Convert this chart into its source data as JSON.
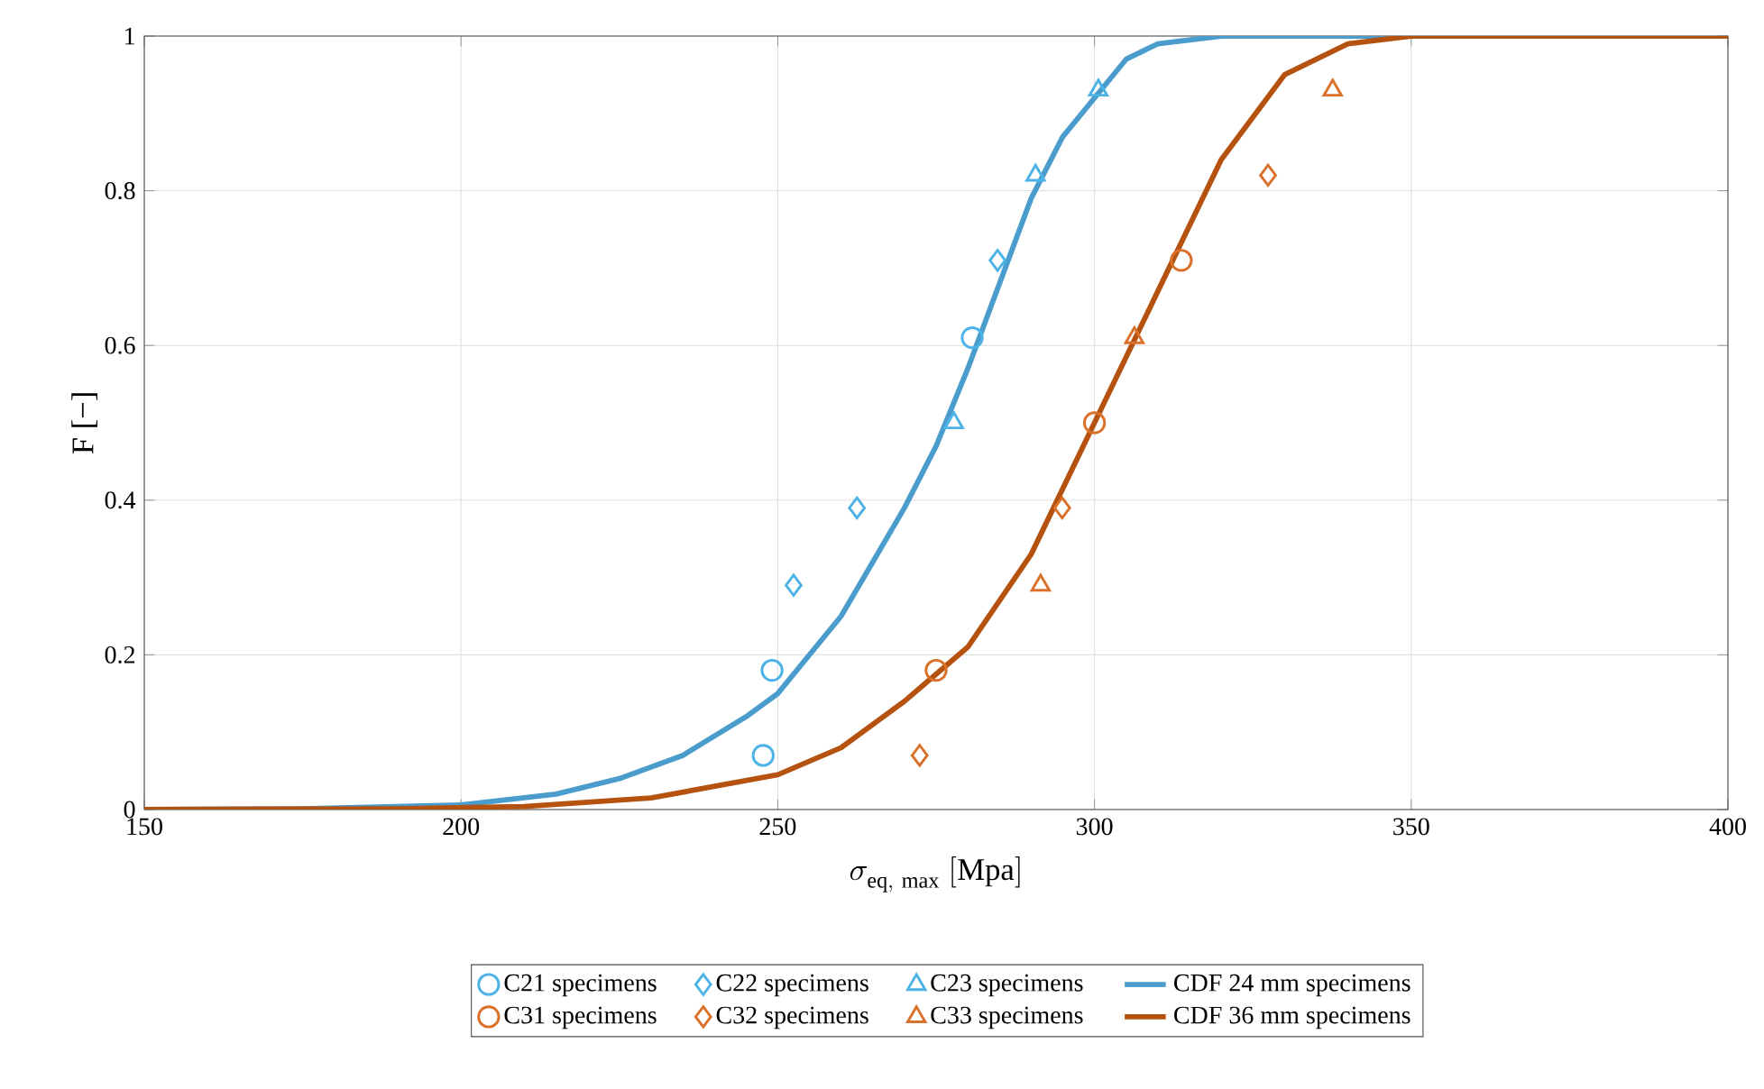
{
  "chart_data": {
    "type": "scatter",
    "xlabel": "\\sigma_{\\mathrm{eq,\\ max}}\\ \\mathrm{[Mpa]}",
    "ylabel": "F [−]",
    "xlim": [
      150,
      400
    ],
    "ylim": [
      0,
      1
    ],
    "xticks": [
      150,
      200,
      250,
      300,
      350,
      400
    ],
    "yticks": [
      0,
      0.2,
      0.4,
      0.6,
      0.8,
      1
    ],
    "grid": true,
    "legend": "bottom",
    "series": [
      {
        "name": "C21 specimens",
        "color": "#4db3e6",
        "marker": "circle",
        "x": [
          247.7,
          249.1,
          280.7
        ],
        "values": [
          0.07,
          0.18,
          0.61
        ]
      },
      {
        "name": "C22 specimens",
        "color": "#4db3e6",
        "marker": "diamond",
        "x": [
          252.5,
          262.5,
          284.7
        ],
        "values": [
          0.29,
          0.39,
          0.71
        ]
      },
      {
        "name": "C23 specimens",
        "color": "#4db3e6",
        "marker": "triangle",
        "x": [
          277.8,
          290.7,
          300.6
        ],
        "values": [
          0.5,
          0.82,
          0.93
        ]
      },
      {
        "name": "CDF 24 mm specimens",
        "type": "line",
        "color": "#4a9ccc",
        "marker": "none",
        "x": [
          150,
          175,
          200,
          215,
          225,
          235,
          245,
          250,
          255,
          260,
          265,
          270,
          275,
          280,
          285,
          290,
          295,
          300,
          305,
          310,
          320,
          400
        ],
        "values": [
          0,
          0.001,
          0.006,
          0.02,
          0.04,
          0.07,
          0.12,
          0.15,
          0.2,
          0.25,
          0.32,
          0.39,
          0.47,
          0.57,
          0.68,
          0.79,
          0.87,
          0.92,
          0.97,
          0.99,
          1,
          1
        ]
      },
      {
        "name": "C31 specimens",
        "color": "#d9712b",
        "marker": "circle",
        "x": [
          275,
          300,
          313.7
        ],
        "values": [
          0.18,
          0.5,
          0.71
        ]
      },
      {
        "name": "C32 specimens",
        "color": "#d9712b",
        "marker": "diamond",
        "x": [
          272.4,
          294.9,
          327.4
        ],
        "values": [
          0.07,
          0.39,
          0.82
        ]
      },
      {
        "name": "C33 specimens",
        "color": "#d9712b",
        "marker": "triangle",
        "x": [
          291.5,
          306.3,
          337.6
        ],
        "values": [
          0.29,
          0.61,
          0.93
        ]
      },
      {
        "name": "CDF 36 mm specimens",
        "type": "line",
        "color": "#b5520f",
        "marker": "none",
        "x": [
          150,
          190,
          210,
          230,
          250,
          260,
          270,
          280,
          290,
          300,
          310,
          320,
          330,
          340,
          350,
          400
        ],
        "values": [
          0,
          0.001,
          0.004,
          0.015,
          0.045,
          0.08,
          0.14,
          0.21,
          0.33,
          0.5,
          0.67,
          0.84,
          0.95,
          0.99,
          1,
          1
        ]
      }
    ]
  }
}
